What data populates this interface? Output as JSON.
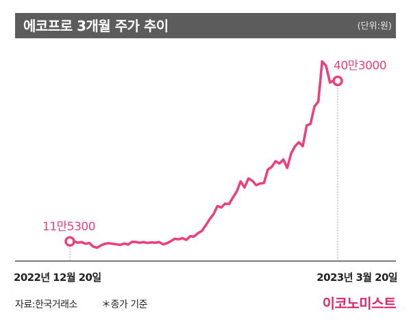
{
  "header": {
    "title": "에코프로 3개월 주가 추이",
    "unit": "(단위:원)"
  },
  "footer": {
    "source": "자료:한국거래소",
    "note": "＊종가 기준",
    "brand": "이코노미스트"
  },
  "colors": {
    "line": "#ec3f7e",
    "title_bg": "#5c5c5c",
    "brand": "#e2256d"
  },
  "chart_data": {
    "type": "line",
    "title": "에코프로 3개월 주가 추이",
    "unit": "(단위:원)",
    "x_start_label": "2022년 12월 20일",
    "x_end_label": "2023년 3월 20일",
    "start_annotation": "11만5300",
    "end_annotation": "40만3000",
    "ylim": [
      80000,
      450000
    ],
    "grid": false,
    "series": [
      {
        "values": [
          115300,
          116000,
          113000,
          114000,
          111000,
          112500,
          106000,
          104000,
          108000,
          111000,
          112000,
          111000,
          110000,
          109000,
          111500,
          109500,
          114500,
          114000,
          113000,
          114000,
          112500,
          113500,
          113000,
          114000,
          110000,
          112000,
          115500,
          120000,
          119000,
          121000,
          118000,
          124500,
          124000,
          130000,
          134000,
          144000,
          155000,
          164000,
          178500,
          176000,
          183000,
          182000,
          194000,
          205000,
          223000,
          212000,
          228000,
          224000,
          216000,
          219000,
          220000,
          244000,
          249000,
          259000,
          255000,
          262000,
          247000,
          273000,
          286000,
          293000,
          286000,
          323000,
          326000,
          357000,
          366000,
          438000,
          430000,
          400000,
          404000,
          403000
        ]
      }
    ]
  }
}
